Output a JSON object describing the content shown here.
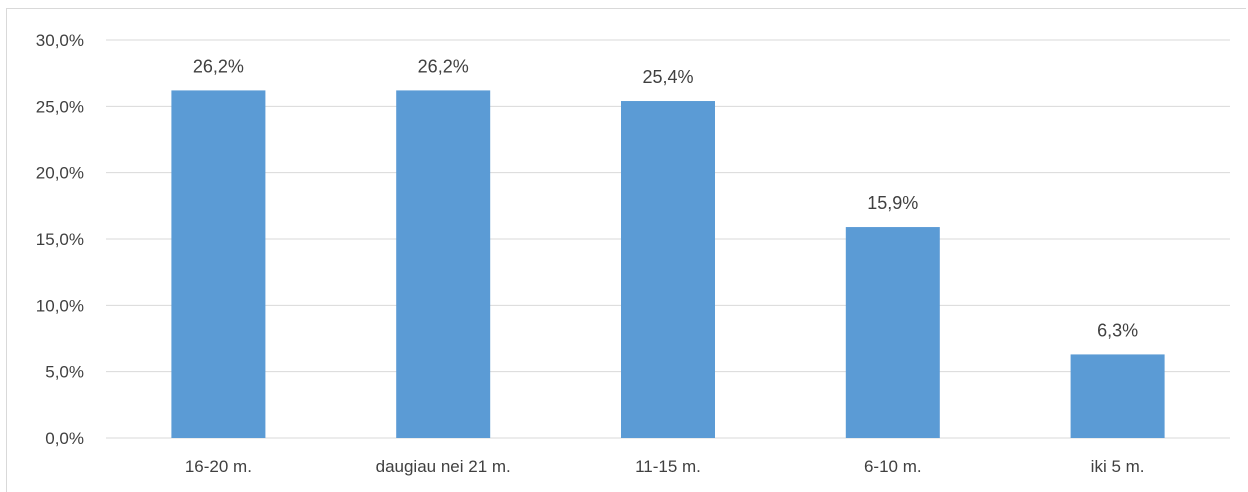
{
  "chart_data": {
    "type": "bar",
    "title": "",
    "xlabel": "",
    "ylabel": "",
    "categories": [
      "16-20 m.",
      "daugiau nei 21 m.",
      "11-15 m.",
      "6-10 m.",
      "iki 5 m."
    ],
    "values": [
      26.2,
      26.2,
      25.4,
      15.9,
      6.3
    ],
    "data_labels": [
      "26,2%",
      "26,2%",
      "25,4%",
      "15,9%",
      "6,3%"
    ],
    "ylim": [
      0,
      30
    ],
    "yticks": [
      0,
      5,
      10,
      15,
      20,
      25,
      30
    ],
    "ytick_labels": [
      "0,0%",
      "5,0%",
      "10,0%",
      "15,0%",
      "20,0%",
      "25,0%",
      "30,0%"
    ],
    "grid": true,
    "legend": "none",
    "bar_color": "#5b9bd5",
    "grid_color": "#d9d9d9",
    "text_color": "#404040"
  }
}
